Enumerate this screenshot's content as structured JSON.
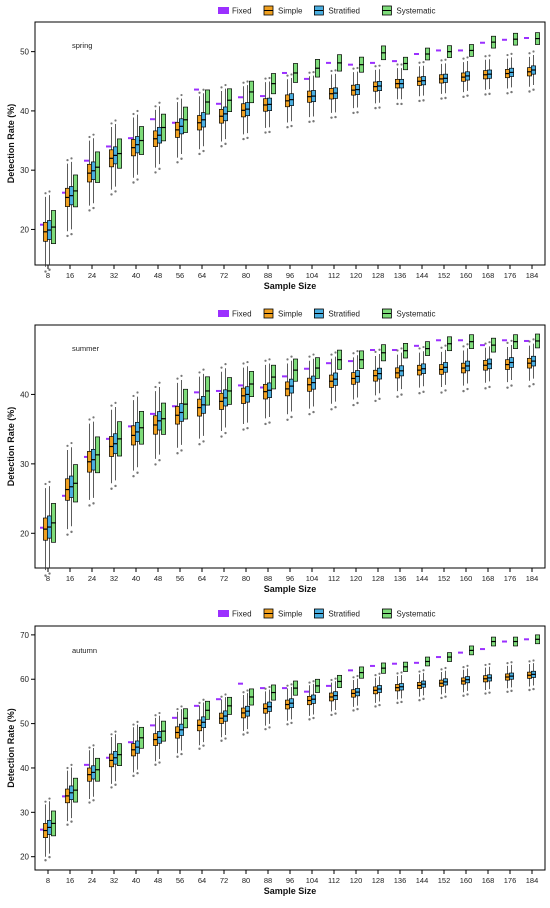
{
  "figure": {
    "title": ""
  },
  "legend_items": [
    {
      "label": "Fixed",
      "color": "#9B30FF"
    },
    {
      "label": "Simple",
      "color": "#F0A020"
    },
    {
      "label": "Stratified",
      "color": "#4AAEE0"
    },
    {
      "label": "Systematic",
      "color": "#7EDC7A"
    }
  ],
  "chart_data": [
    {
      "type": "box",
      "panel_label": "spring",
      "xlabel": "Sample Size",
      "ylabel": "Detection Rate (%)",
      "categories": [
        "8",
        "16",
        "24",
        "32",
        "40",
        "48",
        "56",
        "64",
        "72",
        "80",
        "88",
        "96",
        "104",
        "112",
        "120",
        "128",
        "136",
        "144",
        "152",
        "160",
        "168",
        "176",
        "184"
      ],
      "yticks": [
        20,
        30,
        40,
        50
      ],
      "ylim": [
        14,
        55
      ],
      "grid": false,
      "legend_position": "top-center",
      "series": [
        {
          "name": "Fixed",
          "values": [
            20.8,
            26.2,
            31.6,
            34.0,
            35.4,
            38.6,
            38.0,
            43.6,
            41.2,
            42.3,
            42.5,
            46.4,
            45.4,
            48.1,
            47.8,
            48.1,
            48.4,
            49.6,
            50.2,
            50.2,
            51.5,
            52.0,
            52.3
          ]
        },
        {
          "name": "Simple",
          "medians": [
            19.6,
            25.4,
            29.5,
            32.0,
            33.8,
            35.3,
            36.8,
            38.0,
            39.1,
            40.1,
            41.0,
            41.7,
            42.4,
            42.9,
            43.5,
            44.1,
            44.6,
            45.0,
            45.4,
            45.7,
            46.1,
            46.3,
            46.6
          ]
        },
        {
          "name": "Stratified",
          "medians": [
            19.9,
            25.7,
            29.9,
            32.5,
            34.3,
            35.9,
            37.4,
            38.5,
            39.5,
            40.3,
            41.1,
            41.9,
            42.5,
            43.0,
            43.6,
            44.2,
            44.6,
            45.1,
            45.5,
            45.9,
            46.2,
            46.5,
            46.9
          ]
        },
        {
          "name": "Systematic",
          "medians": [
            20.4,
            26.5,
            30.5,
            32.8,
            35.0,
            37.2,
            38.5,
            41.5,
            41.8,
            43.2,
            44.6,
            46.4,
            47.2,
            48.1,
            47.8,
            49.8,
            48.0,
            49.6,
            50.0,
            50.2,
            51.6,
            52.1,
            52.2
          ]
        }
      ]
    },
    {
      "type": "box",
      "panel_label": "summer",
      "xlabel": "Sample Size",
      "ylabel": "Detection Rate (%)",
      "categories": [
        "8",
        "16",
        "24",
        "32",
        "40",
        "48",
        "56",
        "64",
        "72",
        "80",
        "88",
        "96",
        "104",
        "112",
        "120",
        "128",
        "136",
        "144",
        "152",
        "160",
        "168",
        "176",
        "184"
      ],
      "yticks": [
        20,
        30,
        40
      ],
      "ylim": [
        15,
        50
      ],
      "grid": false,
      "legend_position": "top-center",
      "series": [
        {
          "name": "Fixed",
          "values": [
            20.8,
            25.4,
            31.0,
            33.6,
            35.4,
            37.2,
            38.3,
            40.3,
            40.5,
            41.3,
            41.0,
            42.6,
            43.7,
            44.5,
            44.8,
            46.4,
            46.4,
            47.0,
            47.8,
            47.8,
            47.1,
            47.8,
            47.7
          ]
        },
        {
          "name": "Simple",
          "medians": [
            20.6,
            26.3,
            30.3,
            32.5,
            34.1,
            35.6,
            37.0,
            38.1,
            39.0,
            39.8,
            40.4,
            40.8,
            41.4,
            41.9,
            42.3,
            42.7,
            43.1,
            43.5,
            43.6,
            43.8,
            44.2,
            44.3,
            44.5
          ]
        },
        {
          "name": "Stratified",
          "medians": [
            20.9,
            26.7,
            30.6,
            32.9,
            34.6,
            36.2,
            37.4,
            38.5,
            39.5,
            40.0,
            40.6,
            41.2,
            41.7,
            42.2,
            42.6,
            43.0,
            43.4,
            43.7,
            43.9,
            44.1,
            44.4,
            44.6,
            44.8
          ]
        },
        {
          "name": "Systematic",
          "medians": [
            21.5,
            27.2,
            31.3,
            33.6,
            35.2,
            36.5,
            38.6,
            40.5,
            40.5,
            41.5,
            42.5,
            43.5,
            43.8,
            45.0,
            45.0,
            46.0,
            46.3,
            46.6,
            47.3,
            47.6,
            47.1,
            47.6,
            47.7
          ]
        }
      ]
    },
    {
      "type": "box",
      "panel_label": "autumn",
      "xlabel": "Sample Size",
      "ylabel": "Detection Rate (%)",
      "categories": [
        "8",
        "16",
        "24",
        "32",
        "40",
        "48",
        "56",
        "64",
        "72",
        "80",
        "88",
        "96",
        "104",
        "112",
        "120",
        "128",
        "136",
        "144",
        "152",
        "160",
        "168",
        "176",
        "184"
      ],
      "yticks": [
        20,
        30,
        40,
        50,
        60,
        70
      ],
      "ylim": [
        17,
        72
      ],
      "grid": false,
      "legend_position": "top-center",
      "series": [
        {
          "name": "Fixed",
          "values": [
            26.1,
            33.6,
            40.7,
            42.3,
            45.8,
            49.6,
            51.3,
            54.0,
            55.5,
            59.0,
            58.0,
            58.0,
            57.2,
            58.5,
            62.0,
            63.0,
            63.5,
            63.7,
            65.0,
            66.0,
            66.8,
            68.5,
            69.0
          ]
        },
        {
          "name": "Simple",
          "medians": [
            25.9,
            33.7,
            38.5,
            41.7,
            44.1,
            46.4,
            48.0,
            49.6,
            51.2,
            52.4,
            53.4,
            54.3,
            55.2,
            56.0,
            56.8,
            57.5,
            58.1,
            58.6,
            59.1,
            59.6,
            60.1,
            60.5,
            60.9
          ]
        },
        {
          "name": "Stratified",
          "medians": [
            26.6,
            34.4,
            39.0,
            42.3,
            44.7,
            46.9,
            48.6,
            50.3,
            51.7,
            52.8,
            53.8,
            54.6,
            55.5,
            56.3,
            57.1,
            57.8,
            58.3,
            58.9,
            59.4,
            59.9,
            60.3,
            60.7,
            61.1
          ]
        },
        {
          "name": "Systematic",
          "medians": [
            27.5,
            35.0,
            39.6,
            43.0,
            46.8,
            48.3,
            51.2,
            53.0,
            54.0,
            56.0,
            57.0,
            58.0,
            58.5,
            59.5,
            61.5,
            62.5,
            62.8,
            64.0,
            65.0,
            66.5,
            68.5,
            68.5,
            69.0
          ]
        }
      ]
    }
  ]
}
